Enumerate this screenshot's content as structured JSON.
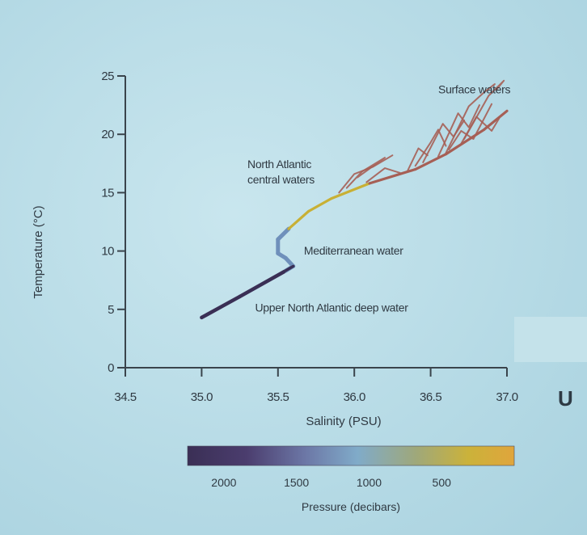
{
  "chart_data": {
    "type": "line",
    "xlabel": "Salinity (PSU)",
    "ylabel": "Temperature (°C)",
    "xlim": [
      34.5,
      37.0
    ],
    "ylim": [
      0,
      25
    ],
    "x_ticks": [
      "34.5",
      "35.0",
      "35.5",
      "36.0",
      "36.5",
      "37.0"
    ],
    "y_ticks": [
      "0",
      "5",
      "10",
      "15",
      "20",
      "25"
    ],
    "annotations": [
      {
        "id": "surface",
        "text": "Surface waters",
        "x": 36.55,
        "y": 23.5
      },
      {
        "id": "nacw-1",
        "text": "North Atlantic",
        "x": 35.3,
        "y": 17.1
      },
      {
        "id": "nacw-2",
        "text": "central waters",
        "x": 35.3,
        "y": 15.8
      },
      {
        "id": "med",
        "text": "Mediterranean water",
        "x": 35.67,
        "y": 9.7
      },
      {
        "id": "nadw",
        "text": "Upper North Atlantic deep water",
        "x": 35.35,
        "y": 4.8
      }
    ],
    "main_profile": [
      [
        35.0,
        4.3
      ],
      [
        35.25,
        6.1
      ],
      [
        35.55,
        8.3
      ],
      [
        35.6,
        8.7
      ],
      [
        35.55,
        9.4
      ],
      [
        35.5,
        9.8
      ],
      [
        35.5,
        11.0
      ],
      [
        35.57,
        11.9
      ],
      [
        35.7,
        13.4
      ],
      [
        35.85,
        14.5
      ],
      [
        36.1,
        15.8
      ],
      [
        36.4,
        17.0
      ],
      [
        36.6,
        18.3
      ],
      [
        36.85,
        20.4
      ],
      [
        37.0,
        22.0
      ]
    ],
    "nadw_branch": [
      [
        35.25,
        6.1
      ],
      [
        35.47,
        7.7
      ],
      [
        35.6,
        8.7
      ]
    ],
    "surface_traces": [
      [
        [
          35.95,
          15.4
        ],
        [
          36.05,
          16.8
        ],
        [
          36.2,
          18.0
        ],
        [
          36.02,
          16.3
        ]
      ],
      [
        [
          35.9,
          15.0
        ],
        [
          36.0,
          16.6
        ],
        [
          36.12,
          17.2
        ],
        [
          36.25,
          18.2
        ]
      ],
      [
        [
          36.08,
          15.9
        ],
        [
          36.2,
          17.1
        ],
        [
          36.3,
          16.7
        ]
      ],
      [
        [
          36.35,
          16.9
        ],
        [
          36.42,
          18.8
        ],
        [
          36.48,
          18.2
        ]
      ],
      [
        [
          36.4,
          17.3
        ],
        [
          36.5,
          19.3
        ],
        [
          36.55,
          20.4
        ],
        [
          36.6,
          19.0
        ]
      ],
      [
        [
          36.45,
          17.6
        ],
        [
          36.58,
          20.9
        ],
        [
          36.65,
          19.8
        ],
        [
          36.72,
          21.2
        ]
      ],
      [
        [
          36.55,
          18.1
        ],
        [
          36.68,
          21.8
        ],
        [
          36.75,
          20.6
        ],
        [
          36.82,
          22.5
        ]
      ],
      [
        [
          36.6,
          18.4
        ],
        [
          36.75,
          22.4
        ],
        [
          36.85,
          23.6
        ],
        [
          36.92,
          24.3
        ]
      ],
      [
        [
          36.7,
          19.2
        ],
        [
          36.8,
          21.5
        ],
        [
          36.9,
          20.3
        ],
        [
          36.95,
          21.4
        ]
      ],
      [
        [
          36.72,
          19.6
        ],
        [
          36.88,
          23.3
        ],
        [
          36.98,
          24.6
        ],
        [
          36.93,
          23.8
        ]
      ],
      [
        [
          36.62,
          18.7
        ],
        [
          36.7,
          20.3
        ],
        [
          36.78,
          19.6
        ],
        [
          36.9,
          22.6
        ]
      ]
    ],
    "colorbar": {
      "title": "Pressure (decibars)",
      "range": [
        0,
        2250
      ],
      "tick_values": [
        2000,
        1500,
        1000,
        500
      ],
      "tick_labels": [
        "2000",
        "1500",
        "1000",
        "500"
      ],
      "colors_high_to_low_pressure": [
        "#3a2f55",
        "#4b3d6e",
        "#6c77a6",
        "#7fa9c9",
        "#9aa77a",
        "#c9b239",
        "#e2a53a"
      ]
    },
    "line_colors": {
      "deep": "#3a2f55",
      "mid": "#6f90bb",
      "central": "#c8b035",
      "surface": "#a65f55"
    }
  },
  "overlay": {
    "cutoff_text": "U"
  }
}
